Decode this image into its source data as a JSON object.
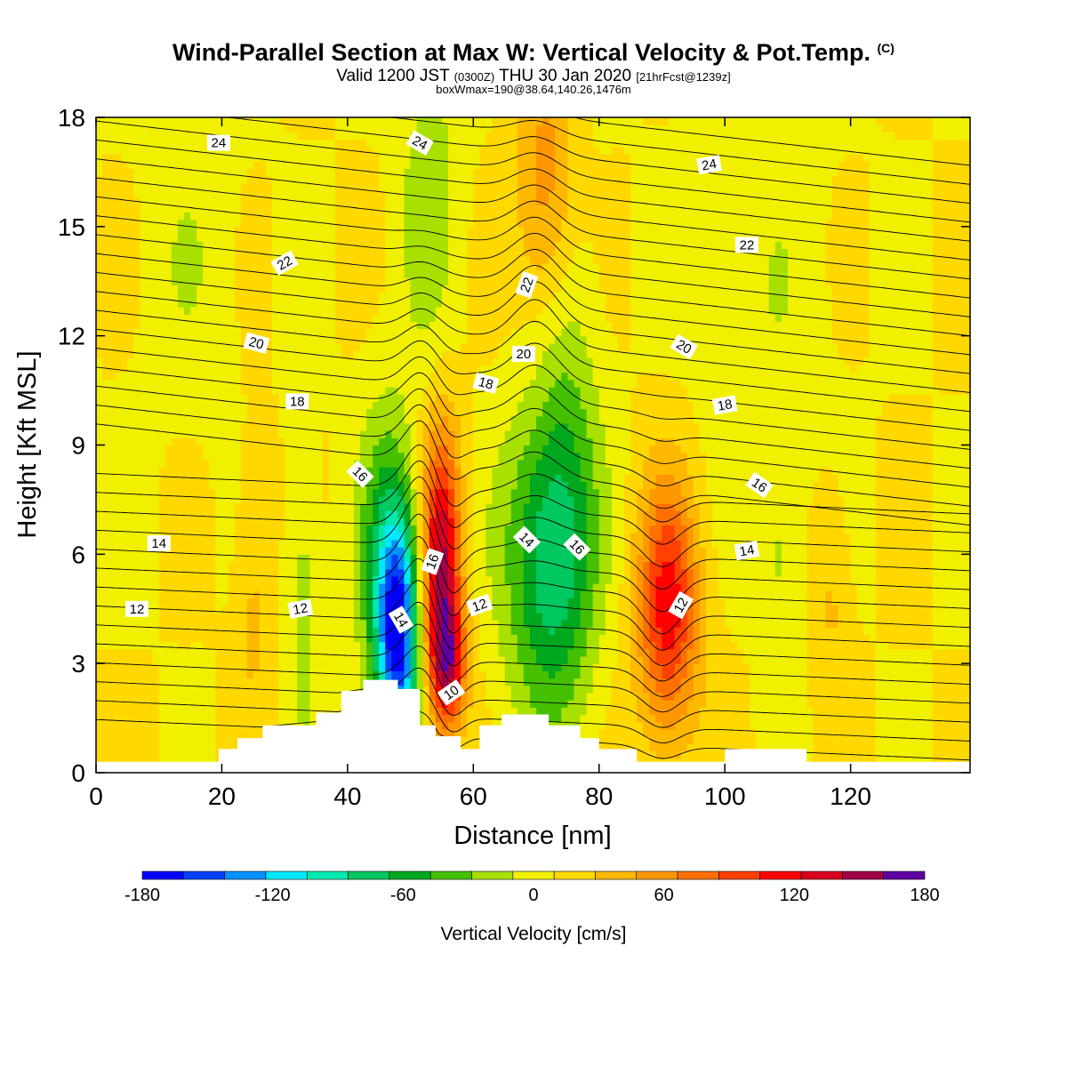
{
  "title": "Wind-Parallel Section at Max W: Vertical Velocity & Pot.Temp.",
  "title_mark": "(C)",
  "subtitle": {
    "part1": "Valid 1200 JST",
    "part2": "(0300Z)",
    "part3": "THU 30 Jan 2020",
    "part4": "[21hrFcst@1239z]"
  },
  "subtitle2": "boxWmax=190@38.64,140.26,1476m",
  "chart_data": {
    "type": "heatmap",
    "xlabel": "Distance [nm]",
    "ylabel": "Height [Kft MSL]",
    "xlim": [
      0,
      139
    ],
    "ylim": [
      0,
      18
    ],
    "xticks": [
      0,
      20,
      40,
      60,
      80,
      100,
      120
    ],
    "yticks": [
      0,
      3,
      6,
      9,
      12,
      15,
      18
    ],
    "colorbar": {
      "title": "Vertical Velocity [cm/s]",
      "min": -200,
      "max": 200,
      "step": 20,
      "tick_values": [
        -180,
        -120,
        -60,
        0,
        60,
        120,
        180
      ],
      "colors": [
        "#0000ff",
        "#0040ff",
        "#0090ff",
        "#00e8ff",
        "#00e8b0",
        "#00c860",
        "#00a820",
        "#44c000",
        "#a8e000",
        "#f0f000",
        "#ffd800",
        "#ffb800",
        "#ff9800",
        "#ff7000",
        "#ff4000",
        "#ff0000",
        "#d80020",
        "#a00048",
        "#6000a0"
      ]
    },
    "terrain_profile": [
      [
        0,
        0.3
      ],
      [
        19.5,
        0.3
      ],
      [
        19.5,
        0.65
      ],
      [
        22.5,
        0.65
      ],
      [
        22.5,
        0.95
      ],
      [
        26.5,
        0.95
      ],
      [
        26.5,
        1.3
      ],
      [
        35,
        1.3
      ],
      [
        35,
        1.65
      ],
      [
        39,
        1.65
      ],
      [
        39,
        2.25
      ],
      [
        42.5,
        2.25
      ],
      [
        42.5,
        2.55
      ],
      [
        48,
        2.55
      ],
      [
        48,
        2.3
      ],
      [
        51.5,
        2.3
      ],
      [
        51.5,
        1.3
      ],
      [
        54,
        1.3
      ],
      [
        54,
        1.0
      ],
      [
        58,
        1.0
      ],
      [
        58,
        0.65
      ],
      [
        61,
        0.65
      ],
      [
        61,
        1.3
      ],
      [
        64.5,
        1.3
      ],
      [
        64.5,
        1.6
      ],
      [
        72,
        1.6
      ],
      [
        72,
        1.3
      ],
      [
        77,
        1.3
      ],
      [
        77,
        0.95
      ],
      [
        80,
        0.95
      ],
      [
        80,
        0.65
      ],
      [
        86,
        0.65
      ],
      [
        86,
        0.3
      ],
      [
        100,
        0.3
      ],
      [
        100,
        0.65
      ],
      [
        113,
        0.65
      ],
      [
        113,
        0.3
      ],
      [
        139,
        0.3
      ]
    ],
    "vertical_velocity_cells": [
      {
        "x": 48,
        "z": 3.8,
        "sx": 2.3,
        "sz": 2.3,
        "w": -170
      },
      {
        "x": 46,
        "z": 5.8,
        "sx": 3.2,
        "sz": 3.0,
        "w": -60
      },
      {
        "x": 55,
        "z": 5.8,
        "sx": 2.2,
        "sz": 2.6,
        "w": 140
      },
      {
        "x": 56,
        "z": 3.0,
        "sx": 2.0,
        "sz": 1.2,
        "w": 100
      },
      {
        "x": 72,
        "z": 5.8,
        "sx": 5.0,
        "sz": 3.0,
        "w": -90
      },
      {
        "x": 75,
        "z": 11.0,
        "sx": 3.5,
        "sz": 5.0,
        "w": -30
      },
      {
        "x": 91,
        "z": 4.5,
        "sx": 3.5,
        "sz": 2.5,
        "w": 110
      },
      {
        "x": 72,
        "z": 16.0,
        "sx": 3.5,
        "sz": 2.8,
        "w": 60
      },
      {
        "x": 53,
        "z": 16.0,
        "sx": 3.5,
        "sz": 3.5,
        "w": -30
      },
      {
        "x": 25,
        "z": 5.0,
        "sx": 2.0,
        "sz": 2.8,
        "w": 25
      },
      {
        "x": 33,
        "z": 5.0,
        "sx": 1.8,
        "sz": 3.0,
        "w": -30
      },
      {
        "x": 117,
        "z": 5.0,
        "sx": 2.0,
        "sz": 2.2,
        "w": 25
      },
      {
        "x": 109,
        "z": 6.0,
        "sx": 2.0,
        "sz": 2.5,
        "w": -25
      },
      {
        "x": 105,
        "z": 13.0,
        "sx": 8.0,
        "sz": 4.0,
        "w": -15
      },
      {
        "x": 15,
        "z": 14.0,
        "sx": 6.0,
        "sz": 3.0,
        "w": -15
      }
    ],
    "theta_contours": [
      10,
      12,
      14,
      16,
      18,
      20,
      22,
      24
    ],
    "contour_labels": [
      {
        "text": "24",
        "x": 19.5,
        "z": 17.3,
        "angle": 0
      },
      {
        "text": "24",
        "x": 51.5,
        "z": 17.3,
        "angle": 30
      },
      {
        "text": "24",
        "x": 97.5,
        "z": 16.7,
        "angle": -10
      },
      {
        "text": "22",
        "x": 30,
        "z": 14.0,
        "angle": -30
      },
      {
        "text": "22",
        "x": 68.5,
        "z": 13.4,
        "angle": -70
      },
      {
        "text": "22",
        "x": 103.5,
        "z": 14.5,
        "angle": 0
      },
      {
        "text": "20",
        "x": 25.5,
        "z": 11.8,
        "angle": 15
      },
      {
        "text": "20",
        "x": 68,
        "z": 11.5,
        "angle": 0
      },
      {
        "text": "20",
        "x": 93.5,
        "z": 11.7,
        "angle": 30
      },
      {
        "text": "18",
        "x": 32,
        "z": 10.2,
        "angle": 0
      },
      {
        "text": "18",
        "x": 62,
        "z": 10.7,
        "angle": 15
      },
      {
        "text": "18",
        "x": 100,
        "z": 10.1,
        "angle": -10
      },
      {
        "text": "16",
        "x": 42,
        "z": 8.2,
        "angle": 45
      },
      {
        "text": "16",
        "x": 105.5,
        "z": 7.9,
        "angle": 35
      },
      {
        "text": "16",
        "x": 76.5,
        "z": 6.2,
        "angle": 45
      },
      {
        "text": "16",
        "x": 53.5,
        "z": 5.8,
        "angle": -70
      },
      {
        "text": "14",
        "x": 10,
        "z": 6.3,
        "angle": 0
      },
      {
        "text": "14",
        "x": 68.5,
        "z": 6.4,
        "angle": 45
      },
      {
        "text": "14",
        "x": 103.5,
        "z": 6.1,
        "angle": -10
      },
      {
        "text": "14",
        "x": 48.5,
        "z": 4.2,
        "angle": 60
      },
      {
        "text": "12",
        "x": 6.5,
        "z": 4.5,
        "angle": 0
      },
      {
        "text": "12",
        "x": 32.5,
        "z": 4.5,
        "angle": -10
      },
      {
        "text": "12",
        "x": 61,
        "z": 4.6,
        "angle": -20
      },
      {
        "text": "12",
        "x": 93,
        "z": 4.6,
        "angle": -60
      },
      {
        "text": "10",
        "x": 56.5,
        "z": 2.2,
        "angle": -35
      }
    ]
  }
}
